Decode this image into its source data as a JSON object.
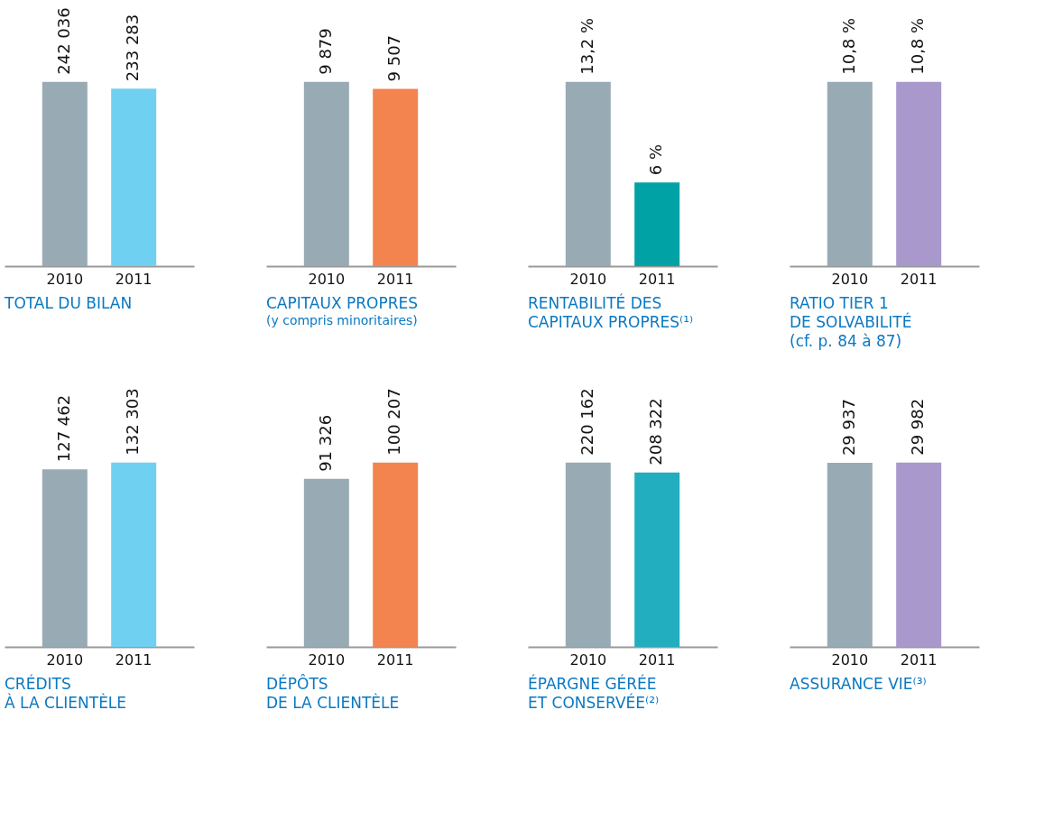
{
  "chart_data": [
    {
      "type": "bar",
      "title": "TOTAL DU BILAN",
      "categories": [
        "2010",
        "2011"
      ],
      "values": [
        242036,
        233283
      ],
      "value_labels": [
        "242 036",
        "233 283"
      ],
      "colors": [
        "#98aab4",
        "#6fd0f2"
      ],
      "tick_labels": "x"
    },
    {
      "type": "bar",
      "title": "CAPITAUX PROPRES",
      "subtitle": "(y compris minoritaires)",
      "categories": [
        "2010",
        "2011"
      ],
      "values": [
        9879,
        9507
      ],
      "value_labels": [
        "9 879",
        "9 507"
      ],
      "colors": [
        "#98aab4",
        "#f3834f"
      ],
      "tick_labels": "x"
    },
    {
      "type": "bar",
      "title": "RENTABILITÉ DES\nCAPITAUX PROPRES⁽¹⁾",
      "categories": [
        "2010",
        "2011"
      ],
      "values": [
        13.2,
        6
      ],
      "value_labels": [
        "13,2 %",
        "6 %"
      ],
      "colors": [
        "#98aab4",
        "#00a2a6"
      ],
      "tick_labels": "x"
    },
    {
      "type": "bar",
      "title": "RATIO TIER 1\nDE SOLVABILITÉ\n(cf. p. 84 à 87)",
      "categories": [
        "2010",
        "2011"
      ],
      "values": [
        10.8,
        10.8
      ],
      "value_labels": [
        "10,8 %",
        "10,8 %"
      ],
      "colors": [
        "#98aab4",
        "#a898cc"
      ],
      "tick_labels": "x"
    },
    {
      "type": "bar",
      "title": "CRÉDITS\nÀ LA CLIENTÈLE",
      "categories": [
        "2010",
        "2011"
      ],
      "values": [
        127462,
        132303
      ],
      "value_labels": [
        "127 462",
        "132 303"
      ],
      "colors": [
        "#98aab4",
        "#6fd0f2"
      ],
      "tick_labels": "x"
    },
    {
      "type": "bar",
      "title": "DÉPÔTS\nDE LA CLIENTÈLE",
      "categories": [
        "2010",
        "2011"
      ],
      "values": [
        91326,
        100207
      ],
      "value_labels": [
        "91 326",
        "100 207"
      ],
      "colors": [
        "#98aab4",
        "#f3834f"
      ],
      "tick_labels": "x"
    },
    {
      "type": "bar",
      "title": "ÉPARGNE GÉRÉE\nET CONSERVÉE⁽²⁾",
      "categories": [
        "2010",
        "2011"
      ],
      "values": [
        220162,
        208322
      ],
      "value_labels": [
        "220 162",
        "208 322"
      ],
      "colors": [
        "#98aab4",
        "#22aebe"
      ],
      "tick_labels": "x"
    },
    {
      "type": "bar",
      "title": "ASSURANCE VIE⁽³⁾",
      "categories": [
        "2010",
        "2011"
      ],
      "values": [
        29937,
        29982
      ],
      "value_labels": [
        "29 937",
        "29 982"
      ],
      "colors": [
        "#98aab4",
        "#a898cc"
      ],
      "tick_labels": "x"
    }
  ]
}
